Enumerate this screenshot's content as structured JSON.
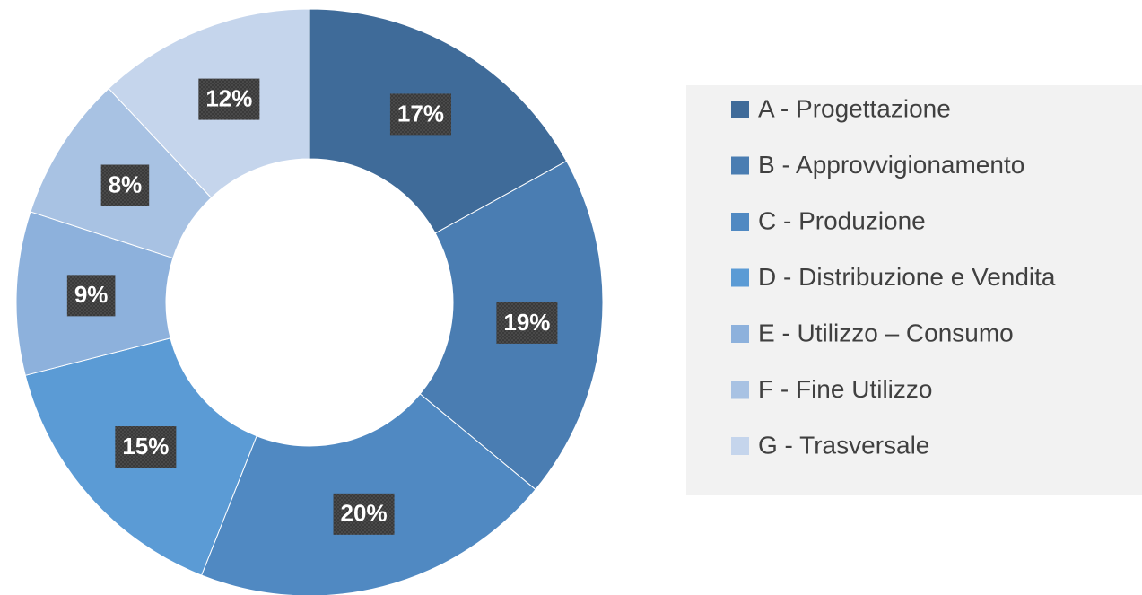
{
  "chart_data": {
    "type": "pie",
    "categories": [
      "A - Progettazione",
      "B - Approvvigionamento",
      "C - Produzione",
      "D - Distribuzione e Vendita",
      "E - Utilizzo – Consumo",
      "F - Fine Utilizzo",
      "G - Trasversale"
    ],
    "values": [
      17,
      19,
      20,
      15,
      9,
      8,
      12
    ],
    "value_labels": [
      "17%",
      "19%",
      "20%",
      "15%",
      "9%",
      "8%",
      "12%"
    ],
    "colors": [
      "#3f6b99",
      "#4a7db2",
      "#5089c2",
      "#5b9bd5",
      "#8db1dc",
      "#a8c2e3",
      "#c5d5ec"
    ],
    "legend": "right"
  }
}
